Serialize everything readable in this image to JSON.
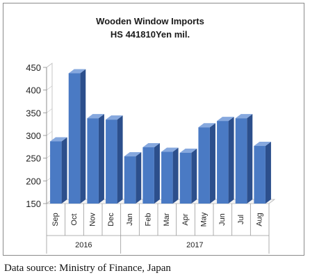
{
  "chart_data": {
    "type": "bar",
    "title": "Wooden Window Imports",
    "subtitle": "HS 441810Yen mil.",
    "categories": [
      "Sep",
      "Oct",
      "Nov",
      "Dec",
      "Jan",
      "Feb",
      "Mar",
      "Apr",
      "May",
      "Jun",
      "Jul",
      "Aug"
    ],
    "groups": [
      {
        "label": "2016",
        "categories": [
          "Sep",
          "Oct",
          "Nov",
          "Dec"
        ]
      },
      {
        "label": "2017",
        "categories": [
          "Jan",
          "Feb",
          "Mar",
          "Apr",
          "May",
          "Jun",
          "Jul",
          "Aug"
        ]
      }
    ],
    "values": [
      287,
      437,
      338,
      335,
      254,
      274,
      264,
      262,
      318,
      332,
      338,
      277
    ],
    "ylim": [
      150,
      450
    ],
    "yticks": [
      "150",
      "200",
      "250",
      "300",
      "350",
      "400",
      "450"
    ],
    "xlabel": "",
    "ylabel": "",
    "bar_color": "#4a7ac4",
    "grid": false,
    "legend": "none"
  },
  "source": "Data source: Ministry of Finance, Japan"
}
